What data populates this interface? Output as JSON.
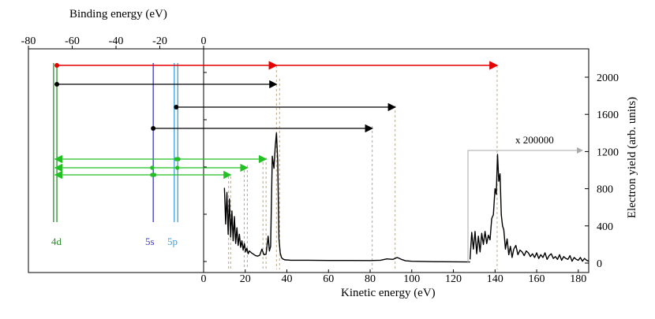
{
  "chart_data": {
    "type": "line",
    "title": "",
    "top_axis": {
      "label": "Binding energy (eV)",
      "range": [
        -80,
        0
      ],
      "ticks": [
        -80,
        -60,
        -40,
        -20,
        0
      ],
      "tick_labels": [
        "-80",
        "-60",
        "-40",
        "-20",
        "0"
      ]
    },
    "bottom_axis": {
      "label": "Kinetic energy (eV)",
      "range": [
        0,
        185
      ],
      "ticks": [
        0,
        20,
        40,
        60,
        80,
        100,
        120,
        140,
        160,
        180
      ],
      "tick_labels": [
        "0",
        "20",
        "40",
        "60",
        "80",
        "100",
        "120",
        "140",
        "160",
        "180"
      ]
    },
    "right_axis": {
      "label": "Electron yield (arb. units)",
      "range": [
        0,
        2400
      ],
      "ticks": [
        0,
        400,
        800,
        1200,
        1600,
        2000
      ],
      "tick_labels": [
        "0",
        "400",
        "800",
        "1200",
        "1600",
        "2000"
      ]
    },
    "levels": [
      {
        "name": "4d",
        "binding_energies": [
          -68.5,
          -67
        ],
        "color": "#2e8b2e"
      },
      {
        "name": "5s",
        "binding_energies": [
          -23
        ],
        "color": "#3a3ad0"
      },
      {
        "name": "5p",
        "binding_energies": [
          -13.4,
          -11.8
        ],
        "color": "#3aa0e0"
      }
    ],
    "transitions": [
      {
        "from_be": -67,
        "to_ke": 35,
        "via_ke": 35,
        "to2_ke": 141,
        "color": "#e60000"
      },
      {
        "from_be": -67,
        "to_ke": 35,
        "color": "#000000"
      },
      {
        "from_be": -12.5,
        "to_ke": 92,
        "color": "#000000"
      },
      {
        "from_be": -23,
        "to_ke": 81,
        "color": "#000000"
      }
    ],
    "auger_arrows": [
      {
        "from_be": -68.5,
        "to_ke": 30,
        "color": "#22c022"
      },
      {
        "from_be": -68.5,
        "to_ke": 21,
        "color": "#22c022"
      },
      {
        "from_be": -68.5,
        "to_ke": 13,
        "color": "#22c022"
      }
    ],
    "series": [
      {
        "name": "Electron yield",
        "color": "#000000",
        "x": [
          10,
          10.6,
          11.2,
          11.8,
          12.4,
          13,
          13.6,
          14.2,
          14.8,
          15.4,
          16,
          16.6,
          17.2,
          17.8,
          18.4,
          19,
          19.6,
          20.2,
          20.8,
          21.4,
          22,
          23,
          24,
          25,
          26,
          27,
          28,
          29,
          30,
          31,
          31.6,
          32.2,
          33,
          33.8,
          34.4,
          35,
          35.6,
          36.2,
          36.8,
          37.4,
          38,
          39,
          42,
          50,
          60,
          70,
          80,
          85,
          88,
          91,
          93,
          95,
          97,
          100,
          110,
          128
        ],
        "y": [
          810,
          420,
          760,
          310,
          690,
          280,
          560,
          240,
          500,
          210,
          380,
          190,
          310,
          170,
          240,
          140,
          210,
          120,
          160,
          100,
          130,
          110,
          95,
          80,
          75,
          85,
          150,
          90,
          95,
          290,
          130,
          180,
          1150,
          1020,
          1250,
          1400,
          1100,
          260,
          110,
          60,
          45,
          35,
          30,
          30,
          28,
          28,
          27,
          30,
          45,
          40,
          60,
          40,
          25,
          20,
          15,
          12
        ]
      },
      {
        "name": "x 200000",
        "color": "#000000",
        "x": [
          128,
          128.8,
          129.6,
          130.4,
          131.2,
          132,
          132.8,
          133.6,
          134.4,
          135.2,
          136,
          136.8,
          137.6,
          138.4,
          139.2,
          140,
          140.6,
          141.2,
          141.8,
          142.4,
          143,
          143.6,
          144.2,
          145,
          145.8,
          146.6,
          147.4,
          148.2,
          149,
          150,
          151,
          152,
          153,
          154,
          155,
          156,
          157,
          158,
          159,
          160,
          161,
          162,
          163,
          164,
          165,
          166,
          167,
          168,
          169,
          170,
          171,
          172,
          173,
          174,
          175,
          176,
          177,
          178,
          179,
          180,
          181,
          182,
          183,
          184,
          185
        ],
        "y": [
          40,
          330,
          150,
          340,
          100,
          290,
          120,
          320,
          200,
          340,
          210,
          300,
          250,
          480,
          520,
          800,
          740,
          1170,
          880,
          960,
          520,
          400,
          360,
          150,
          260,
          90,
          180,
          60,
          150,
          190,
          90,
          140,
          120,
          80,
          130,
          110,
          70,
          100,
          60,
          110,
          50,
          90,
          60,
          110,
          40,
          80,
          100,
          50,
          70,
          40,
          90,
          30,
          70,
          50,
          40,
          80,
          20,
          60,
          40,
          30,
          60,
          20,
          50,
          30,
          20
        ]
      }
    ],
    "annotations": [
      {
        "text": "x 200000"
      },
      {
        "text": "4d"
      },
      {
        "text": "5s"
      },
      {
        "text": "5p"
      }
    ]
  }
}
